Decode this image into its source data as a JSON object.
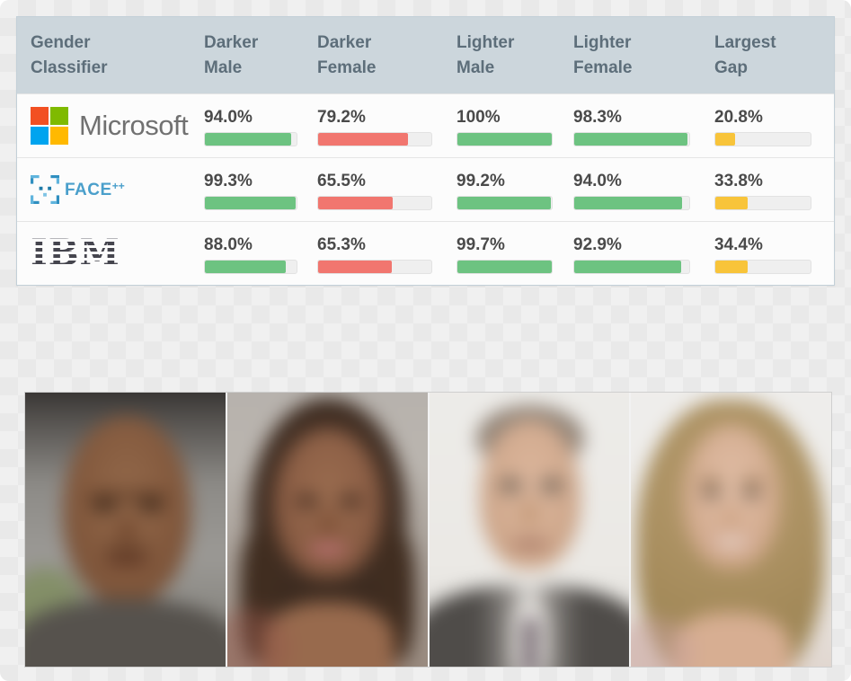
{
  "colors": {
    "green": "#6dc381",
    "red": "#f1766f",
    "yellow": "#f8c43a",
    "header_bg": "#ccd6dc",
    "header_text": "#5d6e7a"
  },
  "table": {
    "header": [
      {
        "line1": "Gender",
        "line2": "Classifier"
      },
      {
        "line1": "Darker",
        "line2": "Male"
      },
      {
        "line1": "Darker",
        "line2": "Female"
      },
      {
        "line1": "Lighter",
        "line2": "Male"
      },
      {
        "line1": "Lighter",
        "line2": "Female"
      },
      {
        "line1": "Largest",
        "line2": "Gap"
      }
    ],
    "rows": [
      {
        "vendor": "Microsoft",
        "cells": [
          {
            "display": "94.0%",
            "pct": 94
          },
          {
            "display": "79.2%",
            "pct": 79.2
          },
          {
            "display": "100%",
            "pct": 100
          },
          {
            "display": "98.3%",
            "pct": 98.3
          },
          {
            "display": "20.8%",
            "pct": 20.8
          }
        ]
      },
      {
        "vendor": "FACE",
        "vendor_sup": "++",
        "cells": [
          {
            "display": "99.3%",
            "pct": 99.3
          },
          {
            "display": "65.5%",
            "pct": 65.5
          },
          {
            "display": "99.2%",
            "pct": 99.2
          },
          {
            "display": "94.0%",
            "pct": 94
          },
          {
            "display": "33.8%",
            "pct": 33.8
          }
        ]
      },
      {
        "vendor": "IBM",
        "cells": [
          {
            "display": "88.0%",
            "pct": 88
          },
          {
            "display": "65.3%",
            "pct": 65.3
          },
          {
            "display": "99.7%",
            "pct": 99.7
          },
          {
            "display": "92.9%",
            "pct": 92.9
          },
          {
            "display": "34.4%",
            "pct": 34.4
          }
        ]
      }
    ]
  },
  "chart_data": {
    "type": "table",
    "title": "Gender Classifier accuracy by subgroup",
    "columns": [
      "Gender Classifier",
      "Darker Male",
      "Darker Female",
      "Lighter Male",
      "Lighter Female",
      "Largest Gap"
    ],
    "rows": [
      {
        "classifier": "Microsoft",
        "darker_male": 94.0,
        "darker_female": 79.2,
        "lighter_male": 100.0,
        "lighter_female": 98.3,
        "largest_gap": 20.8
      },
      {
        "classifier": "FACE++",
        "darker_male": 99.3,
        "darker_female": 65.5,
        "lighter_male": 99.2,
        "lighter_female": 94.0,
        "largest_gap": 33.8
      },
      {
        "classifier": "IBM",
        "darker_male": 88.0,
        "darker_female": 65.3,
        "lighter_male": 99.7,
        "lighter_female": 92.9,
        "largest_gap": 34.4
      }
    ],
    "units": "%",
    "value_range": [
      0,
      100
    ],
    "bar_colors": {
      "darker_male": "green",
      "darker_female": "red",
      "lighter_male": "green",
      "lighter_female": "green",
      "largest_gap": "yellow"
    }
  }
}
